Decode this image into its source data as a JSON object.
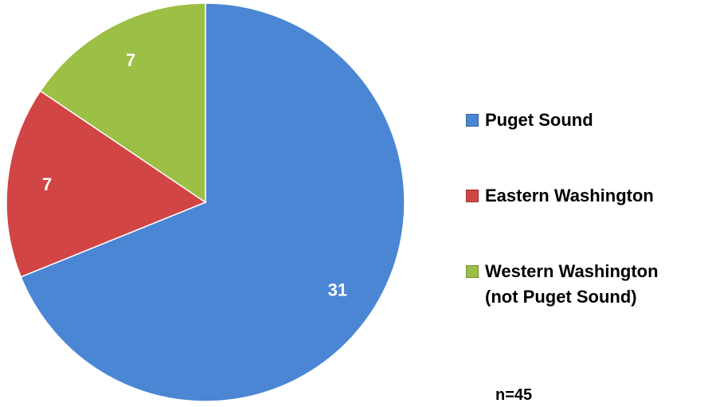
{
  "chart_data": {
    "type": "pie",
    "categories": [
      "Puget Sound",
      "Eastern Washington",
      "Western Washington (not Puget Sound)"
    ],
    "values": [
      31,
      7,
      7
    ],
    "colors": [
      "#4a86d4",
      "#d24545",
      "#9cbf45"
    ],
    "annotation": "n=45"
  }
}
